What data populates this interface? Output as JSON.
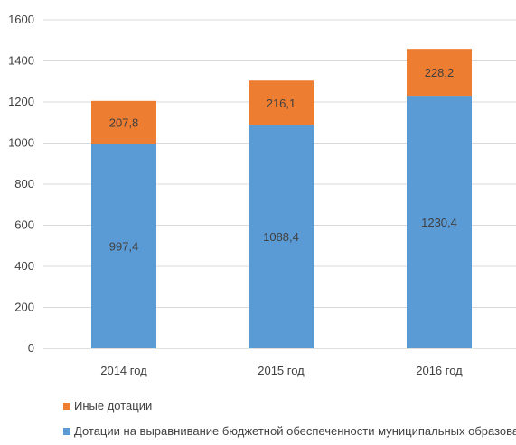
{
  "chart_data": {
    "type": "bar",
    "stacked": true,
    "categories": [
      "2014 год",
      "2015 год",
      "2016 год"
    ],
    "series": [
      {
        "name": "Дотации на выравнивание бюджетной обеспеченности муниципальных образований",
        "values": [
          997.4,
          1088.4,
          1230.4
        ],
        "labels": [
          "997,4",
          "1088,4",
          "1230,4"
        ],
        "color": "#5b9bd5"
      },
      {
        "name": "Иные дотации",
        "values": [
          207.8,
          216.1,
          228.2
        ],
        "labels": [
          "207,8",
          "216,1",
          "228,2"
        ],
        "color": "#ed7d31"
      }
    ],
    "ylim": [
      0,
      1600
    ],
    "yticks": [
      "0",
      "200",
      "400",
      "600",
      "800",
      "1000",
      "1200",
      "1400",
      "1600"
    ],
    "grid": true,
    "legend_position": "bottom"
  }
}
